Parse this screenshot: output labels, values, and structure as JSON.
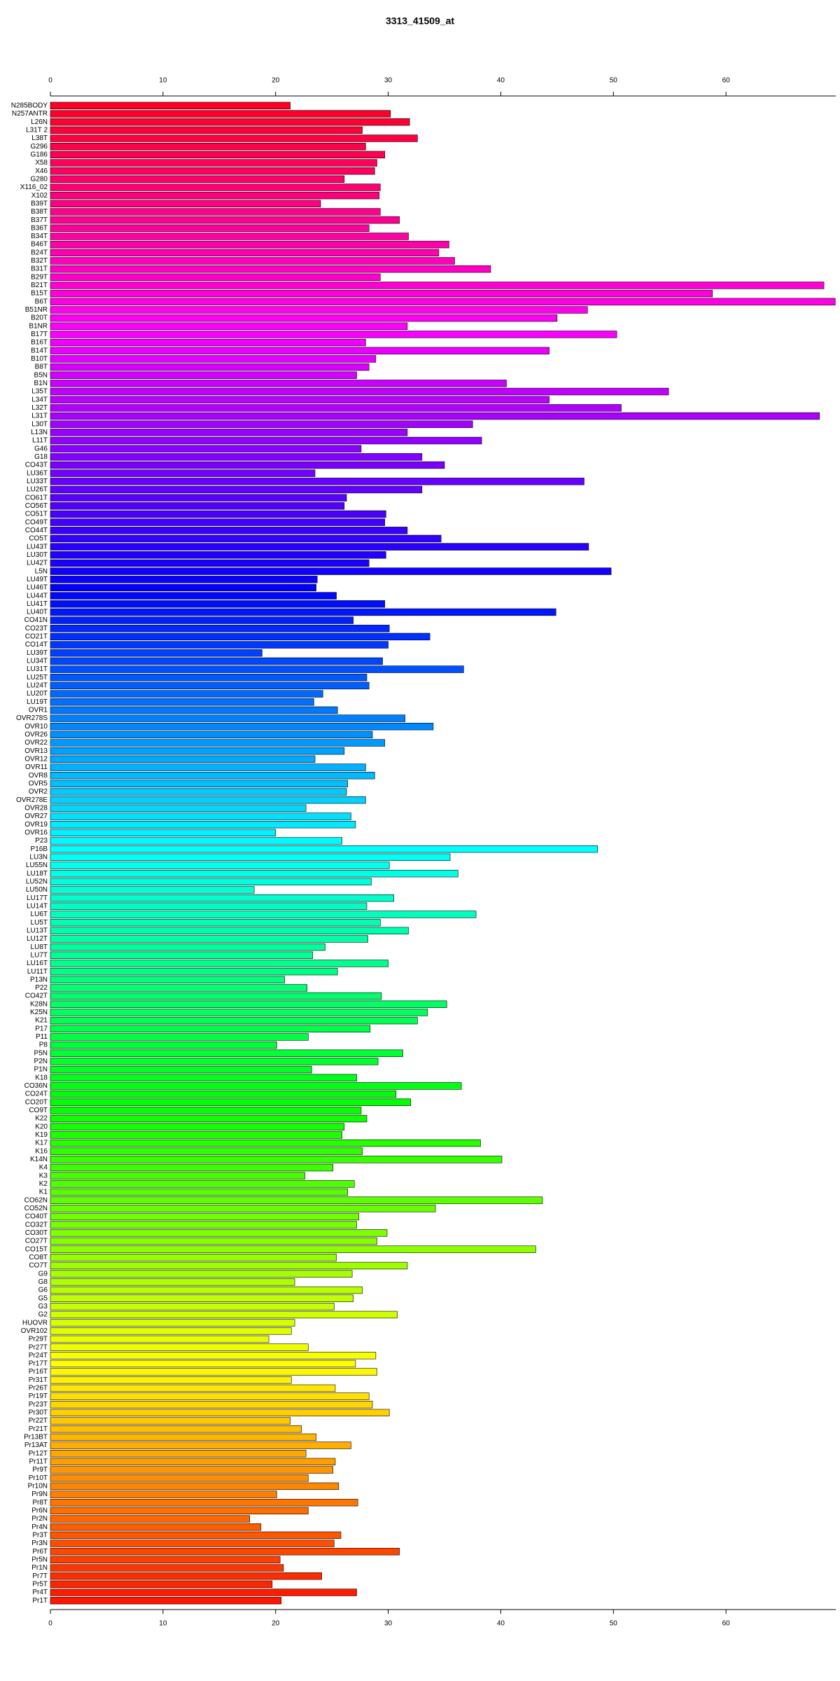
{
  "chart_data": {
    "type": "bar",
    "orientation": "horizontal",
    "title": "3313_41509_at",
    "categories": [
      "N285BODY",
      "N257ANTR",
      "L26N",
      "L31T 2",
      "L38T",
      "G296",
      "G186",
      "X58",
      "X46",
      "G280",
      "X116_02",
      "X102",
      "B39T",
      "B38T",
      "B37T",
      "B36T",
      "B34T",
      "B46T",
      "B24T",
      "B32T",
      "B31T",
      "B29T",
      "B21T",
      "B15T",
      "B6T",
      "B51NR",
      "B20T",
      "B1NR",
      "B17T",
      "B16T",
      "B14T",
      "B10T",
      "B8T",
      "B5N",
      "B1N",
      "L35T",
      "L34T",
      "L32T",
      "L31T",
      "L30T",
      "L13N",
      "L11T",
      "G46",
      "G18",
      "CO43T",
      "LU36T",
      "LU33T",
      "LU26T",
      "CO61T",
      "CO56T",
      "CO51T",
      "CO49T",
      "CO44T",
      "CO5T",
      "LU43T",
      "LU30T",
      "LU42T",
      "L5N",
      "LU49T",
      "LU46T",
      "LU44T",
      "LU41T",
      "LU40T",
      "CO41N",
      "CO23T",
      "CO21T",
      "CO14T",
      "LU39T",
      "LU34T",
      "LU31T",
      "LU25T",
      "LU24T",
      "LU20T",
      "LU19T",
      "OVR1",
      "OVR278S",
      "OVR10",
      "OVR26",
      "OVR22",
      "OVR13",
      "OVR12",
      "OVR11",
      "OVR8",
      "OVR5",
      "OVR2",
      "OVR278E",
      "OVR28",
      "OVR27",
      "OVR19",
      "OVR16",
      "P23",
      "P16B",
      "LU3N",
      "LU55N",
      "LU18T",
      "LU52N",
      "LU50N",
      "LU17T",
      "LU14T",
      "LU6T",
      "LU5T",
      "LU13T",
      "LU12T",
      "LU8T",
      "LU7T",
      "LU16T",
      "LU11T",
      "P13N",
      "P22",
      "CO42T",
      "K28N",
      "K25N",
      "K21",
      "P17",
      "P11",
      "P8",
      "P5N",
      "P2N",
      "P1N",
      "K18",
      "CO36N",
      "CO24T",
      "CO20T",
      "CO9T",
      "K22",
      "K20",
      "K19",
      "K17",
      "K16",
      "K14N",
      "K4",
      "K3",
      "K2",
      "K1",
      "CO62N",
      "CO52N",
      "CO40T",
      "CO32T",
      "CO30T",
      "CO27T",
      "CO15T",
      "CO8T",
      "CO7T",
      "G9",
      "G8",
      "G6",
      "G5",
      "G3",
      "G2",
      "HUOVR",
      "OVR102",
      "Pr29T",
      "Pr27T",
      "Pr24T",
      "Pr17T",
      "Pr16T",
      "Pr31T",
      "Pr26T",
      "Pr19T",
      "Pr23T",
      "Pr30T",
      "Pr22T",
      "Pr21T",
      "Pr13BT",
      "Pr13AT",
      "Pr12T",
      "Pr11T",
      "Pr9T",
      "Pr10T",
      "Pr10N",
      "Pr9N",
      "Pr8T",
      "Pr6N",
      "Pr2N",
      "Pr4N",
      "Pr3T",
      "Pr3N",
      "Pr6T",
      "Pr5N",
      "Pr1N",
      "Pr7T",
      "Pr5T",
      "Pr4T",
      "Pr1T"
    ],
    "values": [
      21.3,
      30.2,
      31.9,
      27.7,
      32.6,
      28.0,
      29.7,
      29.0,
      28.8,
      26.1,
      29.3,
      29.2,
      24.0,
      29.3,
      31.0,
      28.3,
      31.8,
      35.4,
      34.5,
      35.9,
      39.1,
      29.3,
      68.7,
      58.8,
      69.7,
      47.7,
      45.0,
      31.7,
      50.3,
      28.0,
      44.3,
      28.9,
      28.3,
      27.2,
      40.5,
      54.9,
      44.3,
      50.7,
      68.3,
      37.5,
      31.7,
      38.3,
      27.6,
      33.0,
      35.0,
      23.5,
      47.4,
      33.0,
      26.3,
      26.1,
      29.8,
      29.7,
      31.7,
      34.7,
      47.8,
      29.8,
      28.3,
      49.8,
      23.7,
      23.6,
      25.4,
      29.7,
      44.9,
      26.9,
      30.1,
      33.7,
      30.0,
      18.8,
      29.5,
      36.7,
      28.1,
      28.3,
      24.2,
      23.4,
      25.5,
      31.5,
      34.0,
      28.6,
      29.7,
      26.1,
      23.5,
      28.0,
      28.8,
      26.4,
      26.3,
      28.0,
      22.7,
      26.7,
      27.1,
      20.0,
      25.9,
      48.6,
      35.5,
      30.1,
      36.2,
      28.5,
      18.1,
      30.5,
      28.1,
      37.8,
      29.3,
      31.8,
      28.2,
      24.4,
      23.3,
      30.0,
      25.5,
      20.8,
      22.8,
      29.4,
      35.2,
      33.5,
      32.6,
      28.4,
      22.9,
      20.1,
      31.3,
      29.1,
      23.2,
      27.2,
      36.5,
      30.7,
      32.0,
      27.6,
      28.1,
      26.1,
      25.9,
      38.2,
      27.7,
      40.1,
      25.1,
      22.6,
      27.0,
      26.4,
      43.7,
      34.2,
      27.4,
      27.2,
      29.9,
      29.0,
      43.1,
      25.4,
      31.7,
      26.8,
      21.7,
      27.7,
      26.9,
      25.2,
      30.8,
      21.7,
      21.4,
      19.4,
      22.9,
      28.9,
      27.1,
      29.0,
      21.4,
      25.3,
      28.3,
      28.6,
      30.1,
      21.3,
      22.3,
      23.6,
      26.7,
      22.7,
      25.3,
      25.1,
      22.9,
      25.6,
      20.1,
      27.3,
      22.9,
      17.7,
      18.7,
      25.8,
      25.2,
      31.0,
      20.4,
      20.7,
      24.1,
      19.7,
      27.2,
      20.5
    ],
    "colormap": "rainbow",
    "xlim": [
      0,
      70
    ],
    "xticks": [
      0,
      10,
      20,
      30,
      40,
      50,
      60
    ],
    "grid": false
  }
}
